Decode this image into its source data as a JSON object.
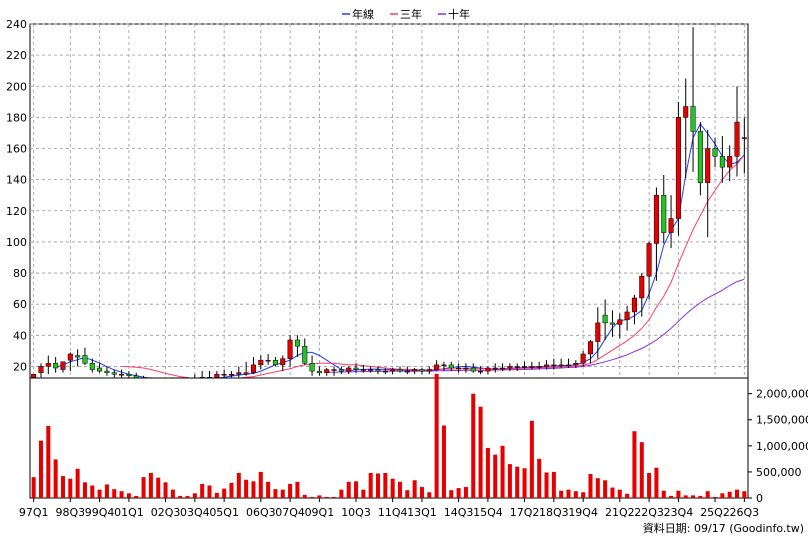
{
  "legend": [
    {
      "label": "年線",
      "color": "#1e3cff"
    },
    {
      "label": "三年",
      "color": "#ff3c6e"
    },
    {
      "label": "十年",
      "color": "#8a2be2"
    }
  ],
  "footer": "資料日期: 09/17  (Goodinfo.tw)",
  "chart_data": [
    {
      "type": "candlestick",
      "title": "",
      "period": "quarterly",
      "ylim": [
        10,
        240
      ],
      "yticks": [
        20,
        40,
        60,
        80,
        100,
        120,
        140,
        160,
        180,
        200,
        220,
        240
      ],
      "xtick_labels": [
        "97Q1",
        "98Q3",
        "99Q4",
        "01Q1",
        "02Q3",
        "03Q4",
        "05Q1",
        "06Q3",
        "07Q4",
        "09Q1",
        "10Q3",
        "11Q4",
        "13Q1",
        "14Q3",
        "15Q4",
        "17Q2",
        "18Q3",
        "19Q4",
        "21Q2",
        "22Q3",
        "23Q4",
        "25Q2",
        "26Q3"
      ],
      "grid": true,
      "candles": {
        "open": [
          13,
          16,
          20,
          22,
          18,
          24,
          27,
          27,
          22,
          19,
          17,
          16,
          15,
          15,
          14,
          12,
          11,
          10,
          10,
          11,
          11,
          11,
          12,
          12,
          13,
          13,
          15,
          15,
          15,
          15,
          16,
          21,
          24,
          24,
          21,
          25,
          37,
          33,
          22,
          17,
          16,
          18,
          18,
          17,
          19,
          18,
          18,
          18,
          17,
          17,
          18,
          17,
          17,
          18,
          17,
          18,
          21,
          21,
          19,
          19,
          19,
          17,
          17,
          19,
          19,
          19,
          20,
          20,
          20,
          20,
          20,
          21,
          21,
          21,
          21,
          22,
          28,
          36,
          53,
          48,
          47,
          50,
          55,
          64,
          78,
          99,
          130,
          106,
          115,
          180,
          187,
          171,
          138,
          160,
          155,
          148,
          155,
          167
        ],
        "high": [
          14,
          22,
          27,
          26,
          22,
          29,
          31,
          32,
          25,
          22,
          20,
          18,
          18,
          17,
          16,
          14,
          13,
          12,
          13,
          13,
          13,
          13,
          15,
          17,
          17,
          17,
          18,
          17,
          20,
          23,
          26,
          27,
          28,
          26,
          27,
          40,
          40,
          38,
          27,
          20,
          19,
          20,
          20,
          20,
          22,
          21,
          20,
          20,
          19,
          19,
          20,
          20,
          19,
          19,
          20,
          24,
          23,
          23,
          22,
          22,
          22,
          20,
          20,
          22,
          22,
          22,
          22,
          23,
          23,
          23,
          24,
          25,
          25,
          25,
          24,
          30,
          37,
          58,
          63,
          56,
          54,
          59,
          66,
          80,
          100,
          135,
          143,
          130,
          190,
          205,
          238,
          177,
          172,
          167,
          168,
          162,
          200,
          180
        ],
        "low": [
          11,
          13,
          15,
          16,
          16,
          17,
          20,
          21,
          16,
          16,
          14,
          13,
          13,
          12,
          10,
          10,
          9,
          8,
          9,
          9,
          10,
          10,
          10,
          11,
          11,
          12,
          12,
          13,
          13,
          14,
          15,
          18,
          21,
          20,
          17,
          20,
          26,
          21,
          14,
          14,
          14,
          14,
          15,
          15,
          16,
          16,
          16,
          15,
          15,
          15,
          16,
          15,
          15,
          15,
          15,
          17,
          17,
          17,
          16,
          16,
          16,
          15,
          15,
          16,
          17,
          17,
          17,
          18,
          18,
          18,
          18,
          18,
          19,
          19,
          19,
          20,
          22,
          25,
          37,
          39,
          38,
          43,
          47,
          52,
          63,
          75,
          99,
          96,
          104,
          141,
          145,
          130,
          103,
          148,
          138,
          139,
          142,
          144
        ],
        "close": [
          15,
          20,
          22,
          19,
          23,
          28,
          26,
          22,
          18,
          17,
          16,
          15,
          15,
          14,
          12,
          11,
          10,
          10,
          11,
          12,
          11,
          12,
          12,
          13,
          13,
          15,
          15,
          15,
          16,
          16,
          21,
          24,
          24,
          21,
          25,
          37,
          33,
          22,
          17,
          16,
          18,
          18,
          17,
          19,
          18,
          18,
          18,
          17,
          17,
          18,
          17,
          17,
          18,
          17,
          18,
          21,
          21,
          19,
          19,
          19,
          17,
          17,
          19,
          19,
          19,
          20,
          20,
          20,
          20,
          20,
          21,
          21,
          21,
          21,
          22,
          28,
          36,
          48,
          48,
          47,
          50,
          55,
          64,
          78,
          99,
          130,
          106,
          115,
          180,
          187,
          171,
          138,
          160,
          155,
          148,
          155,
          177,
          167
        ]
      },
      "series": [
        {
          "name": "年線",
          "color": "#1e3cff",
          "values": [
            null,
            null,
            null,
            19.3,
            21,
            23,
            24.3,
            25.8,
            24,
            22.3,
            19.8,
            17.8,
            16.3,
            15,
            14,
            13,
            12.5,
            11.8,
            11.5,
            11,
            10.8,
            10.8,
            11,
            11.3,
            12,
            12.5,
            13,
            13.8,
            14.5,
            15,
            15.5,
            17,
            19,
            21,
            22.5,
            24,
            27,
            29,
            29,
            27,
            24,
            21,
            18,
            17.3,
            17.8,
            18,
            18.3,
            18.3,
            18,
            17.8,
            17.8,
            17.5,
            17.3,
            17.3,
            17.3,
            17.8,
            18.5,
            19.3,
            19.8,
            20,
            19.5,
            19,
            18.5,
            18.3,
            18.5,
            18.8,
            19,
            19.3,
            19.5,
            19.8,
            20,
            20.3,
            20.5,
            20.8,
            21,
            22.5,
            25,
            30,
            37.5,
            44.8,
            49.5,
            50,
            52.5,
            56,
            66.8,
            79.8,
            97.8,
            107.5,
            115,
            142.8,
            167,
            175.8,
            169.5,
            163,
            155,
            150,
            151,
            156
          ]
        },
        {
          "name": "三年",
          "color": "#ff3c6e",
          "values": [
            null,
            null,
            null,
            null,
            null,
            null,
            null,
            null,
            null,
            null,
            null,
            null,
            20,
            19.8,
            19.5,
            19,
            18,
            16.8,
            15.5,
            14.5,
            13.5,
            12.8,
            12.2,
            11.8,
            11.5,
            11.5,
            11.8,
            12.2,
            12.5,
            13,
            13.5,
            14.5,
            15.5,
            16.5,
            17.5,
            18.5,
            20,
            21,
            21.5,
            22,
            22,
            22,
            21.5,
            21,
            21,
            20.5,
            20,
            19.5,
            19,
            18.5,
            18.2,
            18,
            18,
            17.8,
            17.8,
            18,
            18.2,
            18.3,
            18.5,
            18.5,
            18.5,
            18.5,
            18.5,
            18.5,
            18.5,
            18.5,
            18.7,
            18.8,
            19,
            19.2,
            19.3,
            19.5,
            19.7,
            20,
            20.2,
            20.8,
            22,
            24.5,
            27.5,
            30.5,
            33.5,
            36.5,
            40,
            44.5,
            50,
            58,
            65,
            74,
            86,
            97,
            108,
            117,
            126,
            133,
            140,
            146,
            150,
            156
          ]
        },
        {
          "name": "十年",
          "color": "#8a2be2",
          "values": [
            null,
            null,
            null,
            null,
            null,
            null,
            null,
            null,
            null,
            null,
            null,
            null,
            null,
            null,
            null,
            null,
            null,
            null,
            null,
            null,
            null,
            null,
            null,
            null,
            null,
            null,
            null,
            null,
            null,
            null,
            null,
            null,
            null,
            null,
            null,
            null,
            null,
            null,
            null,
            null,
            16.2,
            16.3,
            16.4,
            16.5,
            16.6,
            16.7,
            16.8,
            16.9,
            17,
            17,
            17,
            17,
            17,
            17,
            17,
            17.1,
            17.2,
            17.3,
            17.4,
            17.5,
            17.6,
            17.6,
            17.6,
            17.7,
            17.8,
            17.9,
            18,
            18.1,
            18.2,
            18.4,
            18.6,
            18.8,
            19,
            19.3,
            19.6,
            20,
            20.8,
            21.8,
            23,
            24.3,
            25.8,
            27.5,
            29.5,
            31.5,
            34,
            37,
            40.5,
            44.5,
            49,
            53.5,
            57.5,
            61,
            64,
            66.5,
            69,
            72,
            74.5,
            76
          ]
        }
      ]
    },
    {
      "type": "bar",
      "title": "",
      "ylim": [
        0,
        2300000
      ],
      "yticks": [
        0,
        500000,
        1000000,
        1500000,
        2000000
      ],
      "ytick_labels": [
        "0",
        "500,000",
        "1,000,000",
        "1,500,000",
        "2,000,000"
      ],
      "bar_color": "#e60000",
      "values": [
        400000,
        1100000,
        1380000,
        740000,
        420000,
        370000,
        560000,
        300000,
        240000,
        160000,
        260000,
        170000,
        130000,
        90000,
        40000,
        400000,
        480000,
        390000,
        300000,
        160000,
        40000,
        40000,
        90000,
        270000,
        240000,
        100000,
        180000,
        290000,
        480000,
        350000,
        320000,
        500000,
        310000,
        170000,
        160000,
        270000,
        310000,
        60000,
        20000,
        50000,
        20000,
        20000,
        160000,
        310000,
        320000,
        160000,
        480000,
        470000,
        480000,
        370000,
        310000,
        150000,
        340000,
        210000,
        110000,
        2380000,
        1390000,
        150000,
        190000,
        210000,
        2000000,
        1750000,
        960000,
        830000,
        1000000,
        650000,
        600000,
        570000,
        1480000,
        750000,
        490000,
        500000,
        140000,
        160000,
        130000,
        110000,
        460000,
        380000,
        340000,
        200000,
        160000,
        80000,
        1280000,
        1070000,
        480000,
        580000,
        140000,
        40000,
        140000,
        50000,
        50000,
        40000,
        130000,
        20000,
        90000,
        120000,
        160000,
        130000
      ]
    }
  ]
}
